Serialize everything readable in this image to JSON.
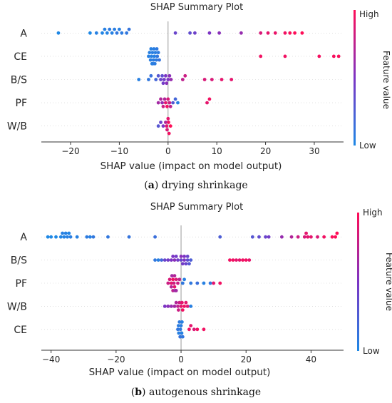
{
  "colors": {
    "low": "#1e88e5",
    "high": "#ff0d57",
    "zero_line": "#999999",
    "axis": "#333333"
  },
  "chart_data": [
    {
      "type": "scatter",
      "title": "SHAP Summary Plot",
      "xlabel": "SHAP value (impact on model output)",
      "ylabel": "",
      "xlim": [
        -26,
        36
      ],
      "xticks": [
        -20,
        -10,
        0,
        10,
        20,
        30
      ],
      "grid": false,
      "colorbar": {
        "label": "Feature value",
        "high": "High",
        "low": "Low"
      },
      "caption": {
        "letter": "a",
        "text": "drying shrinkage"
      },
      "features": [
        {
          "name": "A",
          "x": [
            -22.5,
            -16,
            -14.7,
            -13.5,
            -13,
            -12.5,
            -12,
            -11.5,
            -11,
            -10.5,
            -10,
            -9.5,
            -8.5,
            -8,
            1.5,
            4.5,
            5.5,
            8.5,
            10.5,
            15,
            19,
            20.5,
            22,
            24,
            25,
            26,
            27.5
          ],
          "v": [
            0,
            0,
            0.05,
            0.02,
            0.05,
            0.03,
            0.08,
            0.04,
            0.06,
            0.1,
            0.05,
            0.08,
            0.1,
            0.12,
            0.4,
            0.35,
            0.42,
            0.5,
            0.55,
            0.6,
            0.85,
            0.9,
            0.92,
            0.95,
            0.98,
            1,
            1
          ]
        },
        {
          "name": "CE",
          "x": [
            -4,
            -3.8,
            -3.6,
            -3.4,
            -3.2,
            -3,
            -2.8,
            -2.6,
            -2.4,
            -2.2,
            -2,
            -1.8,
            -3.5,
            -3.1,
            -2.7,
            -2.3,
            -3.3,
            -2.9,
            19,
            24,
            31,
            34,
            35
          ],
          "v": [
            0.05,
            0.05,
            0.06,
            0.05,
            0.06,
            0.07,
            0.05,
            0.06,
            0.08,
            0.1,
            0.08,
            0.12,
            0.05,
            0.06,
            0.07,
            0.09,
            0.05,
            0.06,
            0.95,
            0.95,
            0.96,
            0.97,
            0.98
          ]
        },
        {
          "name": "B/S",
          "x": [
            -6,
            -4,
            -3.5,
            -2.5,
            -2,
            -1.5,
            -1,
            -0.5,
            -0.3,
            0,
            0.3,
            0.6,
            -1.2,
            -0.8,
            3,
            3.5,
            7.5,
            9,
            11,
            13
          ],
          "v": [
            0.05,
            0.1,
            0.15,
            0.2,
            0.3,
            0.4,
            0.45,
            0.5,
            0.55,
            0.5,
            0.55,
            0.6,
            0.35,
            0.45,
            0.75,
            0.8,
            0.85,
            0.85,
            0.9,
            0.9
          ]
        },
        {
          "name": "PF",
          "x": [
            -2,
            -1.5,
            -1,
            -0.5,
            0,
            0.5,
            -1.2,
            -0.7,
            -0.2,
            0.3,
            1,
            1.5,
            2,
            8,
            8.5
          ],
          "v": [
            0.65,
            0.7,
            0.8,
            0.9,
            0.85,
            0.75,
            0.6,
            0.7,
            0.95,
            0.8,
            0.3,
            0.2,
            0.05,
            0.9,
            0.95
          ]
        },
        {
          "name": "W/B",
          "x": [
            -2,
            -1.5,
            -1,
            -0.5,
            -0.2,
            0,
            0.2,
            0.5,
            -0.3,
            0.1
          ],
          "v": [
            0.3,
            0.4,
            0.5,
            0.7,
            0.85,
            0.9,
            0.95,
            1,
            0.9,
            0.95
          ]
        }
      ]
    },
    {
      "type": "scatter",
      "title": "SHAP Summary Plot",
      "xlabel": "SHAP value (impact on model output)",
      "ylabel": "",
      "xlim": [
        -43,
        50
      ],
      "xticks": [
        -40,
        -20,
        0,
        20,
        40
      ],
      "grid": false,
      "colorbar": {
        "label": "Feature value",
        "high": "High",
        "low": "Low"
      },
      "caption": {
        "letter": "b",
        "text": "autogenous shrinkage"
      },
      "features": [
        {
          "name": "A",
          "x": [
            -41,
            -40,
            -38.5,
            -37,
            -36.5,
            -36,
            -35.5,
            -35,
            -34.5,
            -34,
            -32,
            -29,
            -28,
            -27,
            -22.5,
            -16,
            -8,
            12,
            22,
            24,
            26,
            27,
            31,
            34,
            36,
            38,
            38.5,
            39,
            40,
            42,
            44,
            46.5,
            47.5,
            48
          ],
          "v": [
            0,
            0,
            0,
            0.02,
            0.05,
            0.03,
            0.04,
            0.05,
            0.02,
            0.06,
            0.05,
            0.08,
            0.05,
            0.1,
            0.1,
            0.12,
            0.15,
            0.25,
            0.3,
            0.35,
            0.4,
            0.45,
            0.6,
            0.7,
            0.8,
            0.85,
            0.9,
            0.9,
            0.9,
            0.85,
            0.95,
            0.98,
            1,
            1
          ]
        },
        {
          "name": "B/S",
          "x": [
            -8,
            -7,
            -6,
            -5,
            -4,
            -3,
            -2,
            -1,
            0,
            0.5,
            1,
            1.5,
            2,
            2.5,
            3,
            -2.5,
            -1.5,
            0,
            1,
            2,
            15,
            16,
            17,
            18,
            19,
            20,
            21
          ],
          "v": [
            0.1,
            0.05,
            0.2,
            0.4,
            0.45,
            0.5,
            0.55,
            0.45,
            0.4,
            0.45,
            0.5,
            0.4,
            0.35,
            0.3,
            0.25,
            0.5,
            0.45,
            0.55,
            0.5,
            0.4,
            0.95,
            0.95,
            0.9,
            0.9,
            0.95,
            0.95,
            0.9
          ]
        },
        {
          "name": "PF",
          "x": [
            -4,
            -3.5,
            -3,
            -2.5,
            -2,
            -1.5,
            -1,
            -0.5,
            -3,
            -2.5,
            -2,
            -1.5,
            -2.2,
            -1.8,
            -2.8,
            0.5,
            1,
            3,
            5,
            7,
            9,
            10,
            12
          ],
          "v": [
            0.8,
            0.85,
            0.9,
            0.95,
            0.9,
            0.85,
            0.8,
            0.75,
            0.7,
            0.75,
            0.7,
            0.65,
            0.8,
            0.6,
            0.65,
            0.1,
            0.05,
            0.1,
            0.15,
            0.05,
            0.1,
            0.9,
            0.95
          ]
        },
        {
          "name": "W/B",
          "x": [
            -5,
            -4,
            -3,
            -2,
            -1.5,
            -1,
            -0.5,
            0,
            0.5,
            1,
            1.5,
            2,
            -0.8,
            0.3,
            3
          ],
          "v": [
            0.5,
            0.55,
            0.6,
            0.65,
            0.7,
            0.75,
            0.8,
            0.9,
            0.95,
            0.95,
            0.9,
            0.85,
            0.8,
            0.9,
            0.05
          ]
        },
        {
          "name": "CE",
          "x": [
            -1,
            -0.7,
            -0.5,
            -0.3,
            0,
            0.2,
            0.5,
            -0.8,
            -0.2,
            0.3,
            2.5,
            3,
            4,
            5,
            7
          ],
          "v": [
            0.1,
            0.05,
            0.08,
            0.12,
            0.06,
            0.04,
            0.1,
            0.07,
            0.09,
            0.05,
            0.95,
            0.9,
            0.85,
            0.95,
            0.95
          ]
        }
      ]
    }
  ]
}
